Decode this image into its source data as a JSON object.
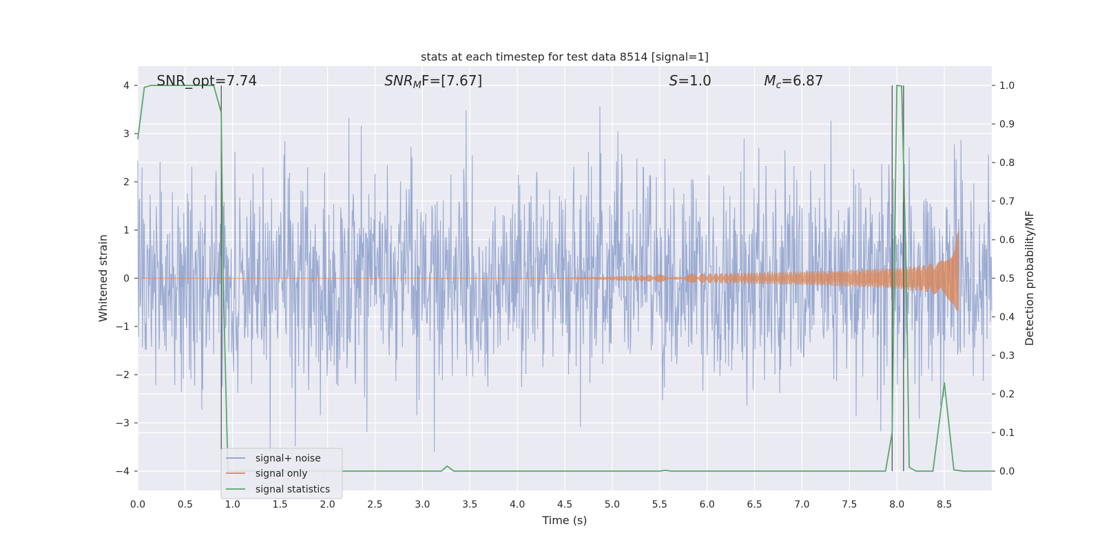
{
  "chart_data": {
    "type": "line",
    "title": "stats at each timestep for test data 8514 [signal=1]",
    "xlabel": "Time (s)",
    "ylabel_left": "Whitened strain",
    "ylabel_right": "Detection probability/MF",
    "xlim": [
      0.0,
      9.0
    ],
    "ylim_left": [
      -4.4,
      4.4
    ],
    "ylim_right": [
      -0.05,
      1.05
    ],
    "x_ticks": [
      "0.0",
      "0.5",
      "1.0",
      "1.5",
      "2.0",
      "2.5",
      "3.0",
      "3.5",
      "4.0",
      "4.5",
      "5.0",
      "5.5",
      "6.0",
      "6.5",
      "7.0",
      "7.5",
      "8.0",
      "8.5"
    ],
    "y_ticks_left": [
      "−4",
      "−3",
      "−2",
      "−1",
      "0",
      "1",
      "2",
      "3",
      "4"
    ],
    "y_ticks_right": [
      "0.0",
      "0.1",
      "0.2",
      "0.3",
      "0.4",
      "0.5",
      "0.6",
      "0.7",
      "0.8",
      "0.9",
      "1.0"
    ],
    "grid": true,
    "annotations": [
      {
        "name": "snr-opt",
        "text": "SNR_opt=7.74",
        "x": 0.2
      },
      {
        "name": "snr-mf",
        "text_base": "SNR",
        "text_sub": "M",
        "text_tail": "F=[7.67]",
        "x": 2.6
      },
      {
        "name": "s-value",
        "text_base": "S",
        "text_tail": "=1.0",
        "x": 5.6
      },
      {
        "name": "mc-value",
        "text_base": "M",
        "text_sub": "c",
        "text_tail": "=6.87",
        "x": 6.6
      }
    ],
    "vertical_lines": [
      0.88,
      7.95,
      8.07
    ],
    "legend": {
      "placement": "lower-left",
      "entries": [
        {
          "name": "signal+ noise",
          "color": "#8c9fcb"
        },
        {
          "name": "signal only",
          "color": "#dd8452"
        },
        {
          "name": "signal statistics",
          "color": "#55a868"
        }
      ]
    },
    "series": [
      {
        "name": "signal+ noise",
        "axis": "left",
        "color": "#8c9fcb",
        "description_range": [
          -3.6,
          4.0
        ]
      },
      {
        "name": "signal only",
        "axis": "left",
        "color": "#dd8452",
        "envelope": {
          "x": [
            4.5,
            5.5,
            6.5,
            7.0,
            7.5,
            8.0,
            8.3,
            8.5,
            8.6,
            8.65
          ],
          "amp": [
            0.0,
            0.08,
            0.12,
            0.14,
            0.17,
            0.22,
            0.28,
            0.38,
            0.6,
            1.05
          ]
        }
      },
      {
        "name": "signal statistics",
        "axis": "right",
        "color": "#55a868",
        "x": [
          0.0,
          0.07,
          0.14,
          0.3,
          0.5,
          0.7,
          0.8,
          0.88,
          0.9,
          0.95,
          1.0,
          2.0,
          3.0,
          3.2,
          3.26,
          3.33,
          4.0,
          5.0,
          5.5,
          5.56,
          5.62,
          6.0,
          7.0,
          7.5,
          7.88,
          7.95,
          8.0,
          8.05,
          8.1,
          8.13,
          8.2,
          8.3,
          8.38,
          8.5,
          8.6,
          8.7,
          8.9,
          9.0
        ],
        "y": [
          0.86,
          0.995,
          1.0,
          1.0,
          1.0,
          1.0,
          1.0,
          0.93,
          0.5,
          0.0,
          0.0,
          0.0,
          0.0,
          0.0,
          0.013,
          0.0,
          0.0,
          0.0,
          0.0,
          0.002,
          0.0,
          0.0,
          0.0,
          0.0,
          0.0,
          0.1,
          1.0,
          0.998,
          0.5,
          0.01,
          0.0,
          0.0,
          0.0,
          0.23,
          0.003,
          0.0,
          0.0,
          0.0
        ]
      }
    ]
  }
}
